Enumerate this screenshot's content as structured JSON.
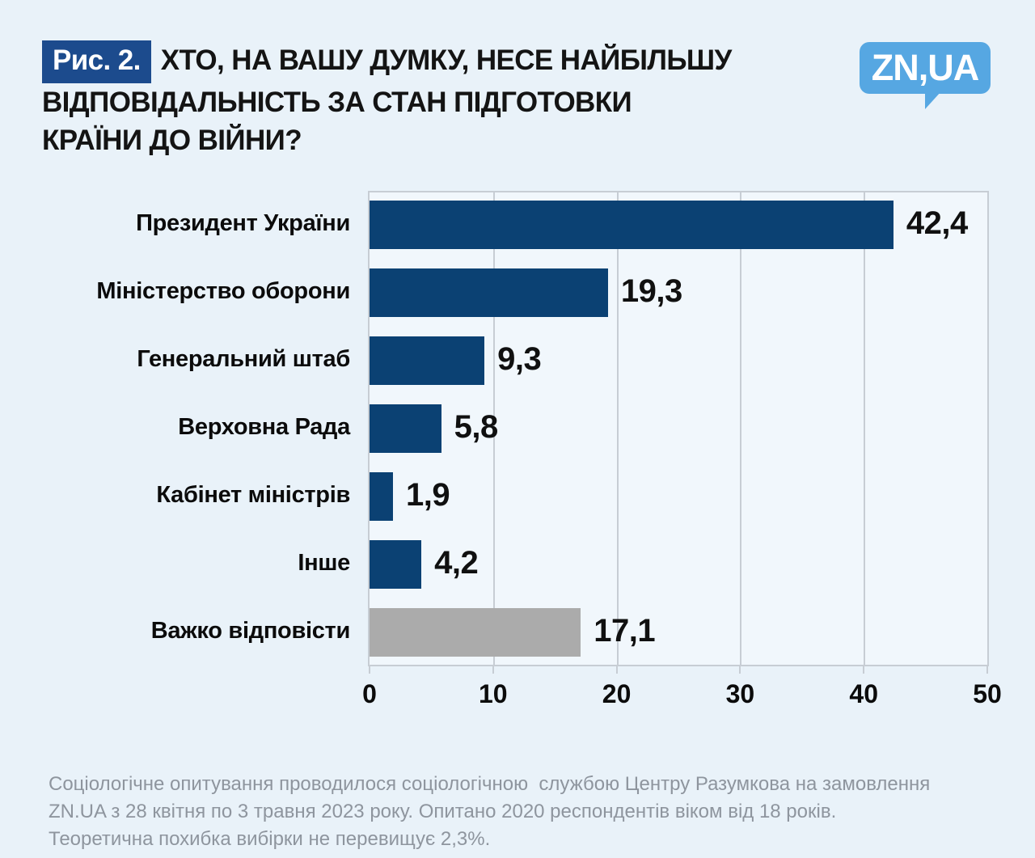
{
  "header": {
    "figure_label": "Рис. 2.",
    "title_lines": [
      "ХТО, НА ВАШУ ДУМКУ, НЕСЕ НАЙБІЛЬШУ",
      "ВІДПОВІДАЛЬНІСТЬ ЗА СТАН ПІДГОТОВКИ",
      "КРАЇНИ ДО ВІЙНИ?"
    ],
    "logo_text": "ZN,UA"
  },
  "chart_data": {
    "type": "bar",
    "orientation": "horizontal",
    "title": "Рис. 2. ХТО, НА ВАШУ ДУМКУ, НЕСЕ НАЙБІЛЬШУ ВІДПОВІДАЛЬНІСТЬ ЗА СТАН ПІДГОТОВКИ КРАЇНИ ДО ВІЙНИ?",
    "categories": [
      "Президент України",
      "Міністерство оборони",
      "Генеральний штаб",
      "Верховна Рада",
      "Кабінет міністрів",
      "Інше",
      "Важко відповісти"
    ],
    "values": [
      42.4,
      19.3,
      9.3,
      5.8,
      1.9,
      4.2,
      17.1
    ],
    "value_labels": [
      "42,4",
      "19,3",
      "9,3",
      "5,8",
      "1,9",
      "4,2",
      "17,1"
    ],
    "bar_colors": [
      "#0b4173",
      "#0b4173",
      "#0b4173",
      "#0b4173",
      "#0b4173",
      "#0b4173",
      "#ababab"
    ],
    "x_ticks": [
      0,
      10,
      20,
      30,
      40,
      50
    ],
    "xlim": [
      0,
      50
    ],
    "grid": true,
    "legend": "none",
    "unit": "percent"
  },
  "footer": {
    "lines": [
      "Соціологічне опитування проводилося соціологічною  службою Центру Разумкова на замовлення",
      "ZN.UA з 28 квітня по 3 травня 2023 року. Опитано 2020 респондентів віком від 18 років.",
      "Теоретична похибка вибірки не перевищує 2,3%."
    ]
  },
  "colors": {
    "page_bg": "#e9f2f9",
    "plot_bg": "#f1f7fc",
    "grid_line": "#c7cdd4",
    "bar_blue": "#0b4173",
    "bar_gray": "#ababab",
    "badge_blue": "#1c4b8d",
    "logo_blue": "#56a7e2",
    "footer_text": "#8e959e"
  }
}
